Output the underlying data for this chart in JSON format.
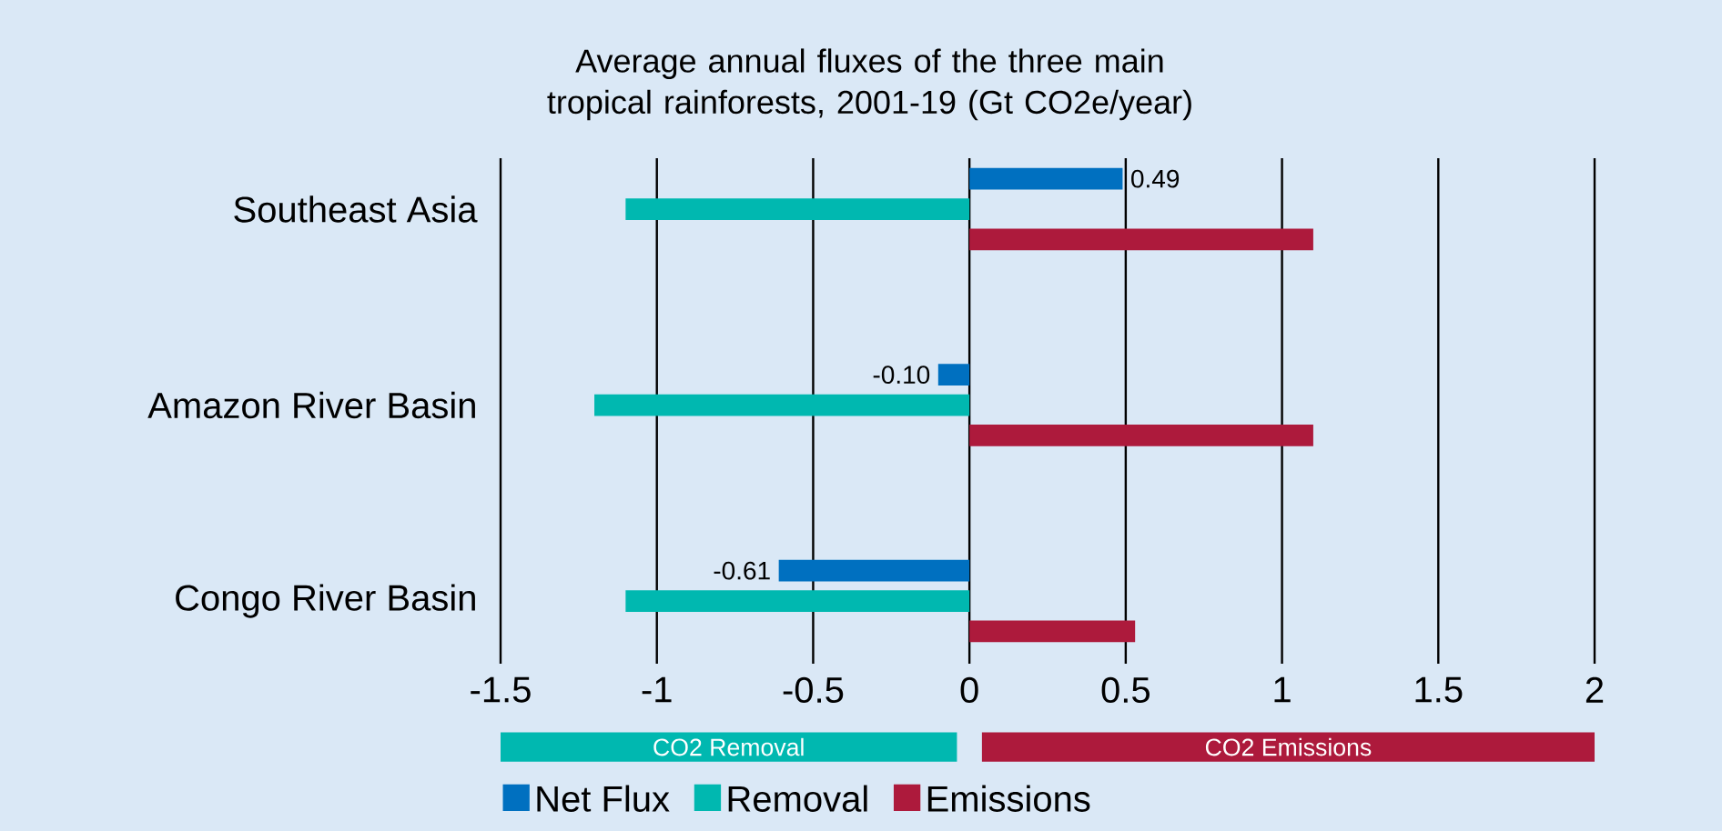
{
  "chart_data": {
    "type": "bar",
    "orientation": "horizontal",
    "title": "Average annual fluxes of the three main tropical rainforests, 2001-19 (Gt CO2e/year)",
    "categories": [
      "Southeast Asia",
      "Amazon River Basin",
      "Congo River Basin"
    ],
    "series": [
      {
        "name": "Net Flux",
        "color": "#0070c0",
        "values": [
          0.49,
          -0.1,
          -0.61
        ],
        "value_labels": [
          "0.49",
          "-0.10",
          "-0.61"
        ]
      },
      {
        "name": "Removal",
        "color": "#00b8b0",
        "values": [
          -1.1,
          -1.2,
          -1.1
        ]
      },
      {
        "name": "Emissions",
        "color": "#ad1a3c",
        "values": [
          1.1,
          1.1,
          0.53
        ]
      }
    ],
    "xlim": [
      -1.5,
      2
    ],
    "xticks": [
      -1.5,
      -1,
      -0.5,
      0,
      0.5,
      1,
      1.5,
      2
    ],
    "annotations": [
      "CO2 Removal",
      "CO2 Emissions"
    ],
    "grid": "x",
    "legend": "bottom"
  }
}
